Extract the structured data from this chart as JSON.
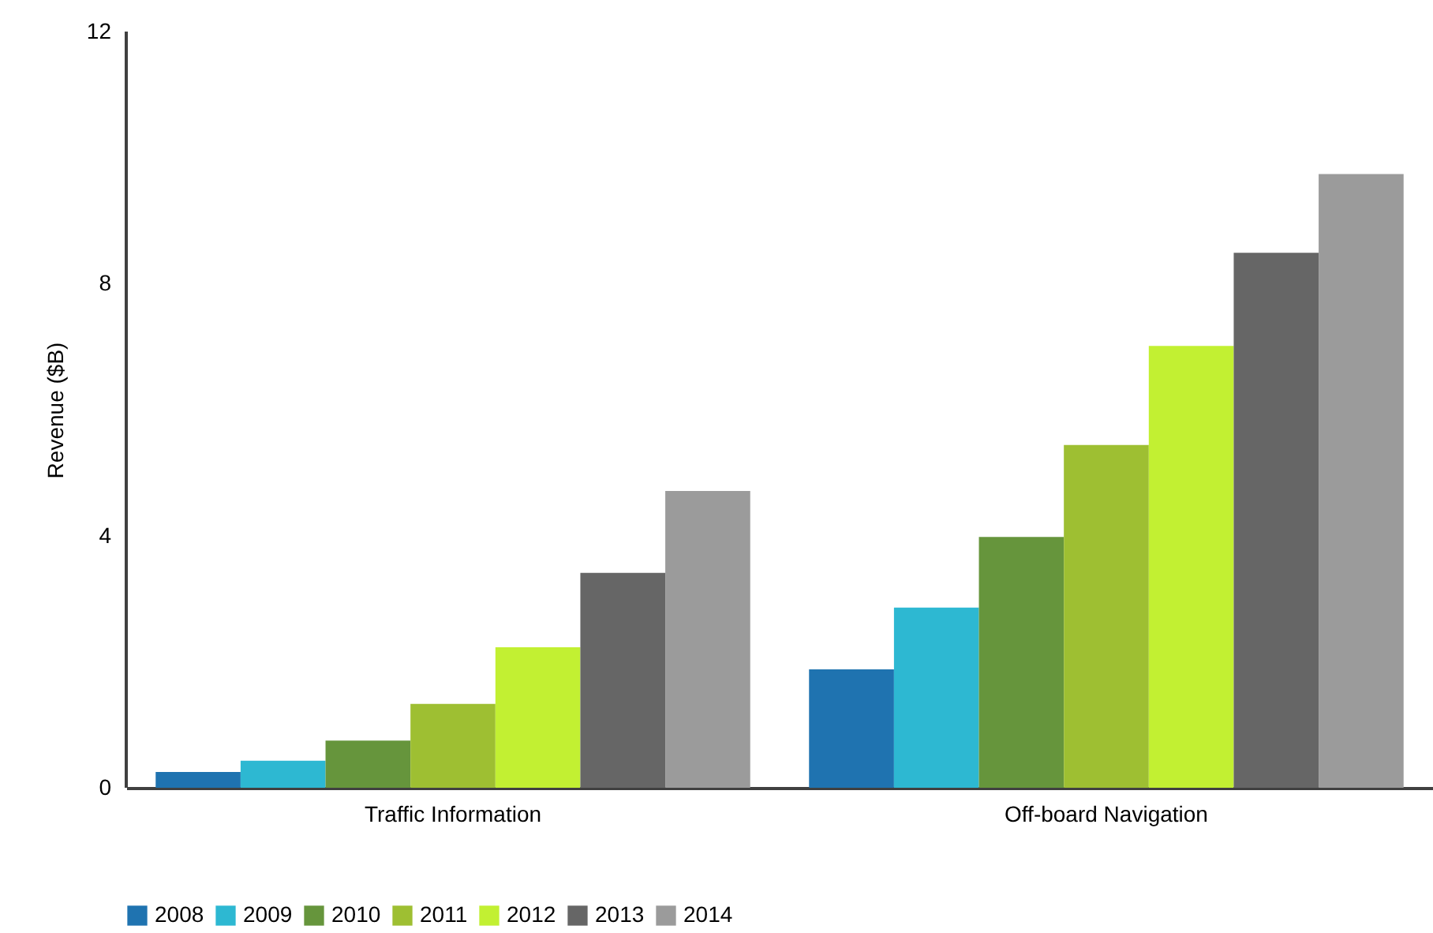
{
  "chart_data": {
    "type": "bar",
    "ylabel": "Revenue ($B)",
    "categories": [
      "Traffic Information",
      "Off-board Navigation"
    ],
    "series": [
      {
        "name": "2008",
        "color": "#1f73b0",
        "values": [
          0.25,
          1.88
        ]
      },
      {
        "name": "2009",
        "color": "#2db8d2",
        "values": [
          0.43,
          2.86
        ]
      },
      {
        "name": "2010",
        "color": "#66953c",
        "values": [
          0.75,
          3.98
        ]
      },
      {
        "name": "2011",
        "color": "#9ebf32",
        "values": [
          1.33,
          5.44
        ]
      },
      {
        "name": "2012",
        "color": "#c2f032",
        "values": [
          2.23,
          7.01
        ]
      },
      {
        "name": "2013",
        "color": "#666666",
        "values": [
          3.41,
          8.49
        ]
      },
      {
        "name": "2014",
        "color": "#9b9b9b",
        "values": [
          4.71,
          9.74
        ]
      }
    ],
    "ylim": [
      0,
      12
    ],
    "yticks": [
      0,
      4,
      8,
      12
    ],
    "grid": false,
    "legend": "bottom"
  }
}
